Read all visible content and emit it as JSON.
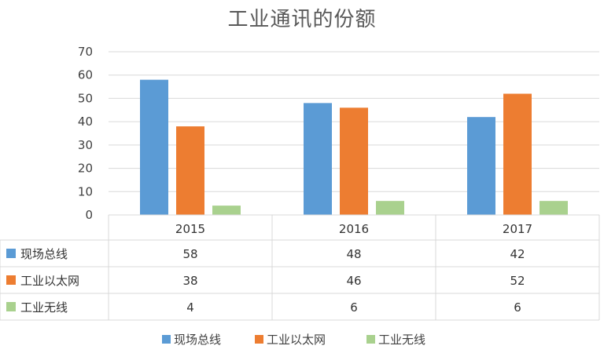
{
  "chart_data": {
    "type": "bar",
    "title": "工业通讯的份额",
    "categories": [
      "2015",
      "2016",
      "2017"
    ],
    "series": [
      {
        "name": "现场总线",
        "values": [
          58,
          48,
          42
        ],
        "color": "#5B9BD5",
        "table_values": [
          "58",
          "48",
          "42"
        ]
      },
      {
        "name": "工业以太网",
        "values": [
          38,
          46,
          52
        ],
        "color": "#ED7D31",
        "table_values": [
          "38",
          "46",
          "52"
        ]
      },
      {
        "name": "工业无线",
        "values": [
          4,
          6,
          6
        ],
        "color": "#A9D18E",
        "table_values": [
          "4",
          "6",
          "6"
        ]
      }
    ],
    "ylim": [
      0,
      70
    ],
    "yticks": [
      "0",
      "10",
      "20",
      "30",
      "40",
      "50",
      "60",
      "70"
    ],
    "grid": true,
    "data_table": true,
    "legend_position": "bottom"
  }
}
